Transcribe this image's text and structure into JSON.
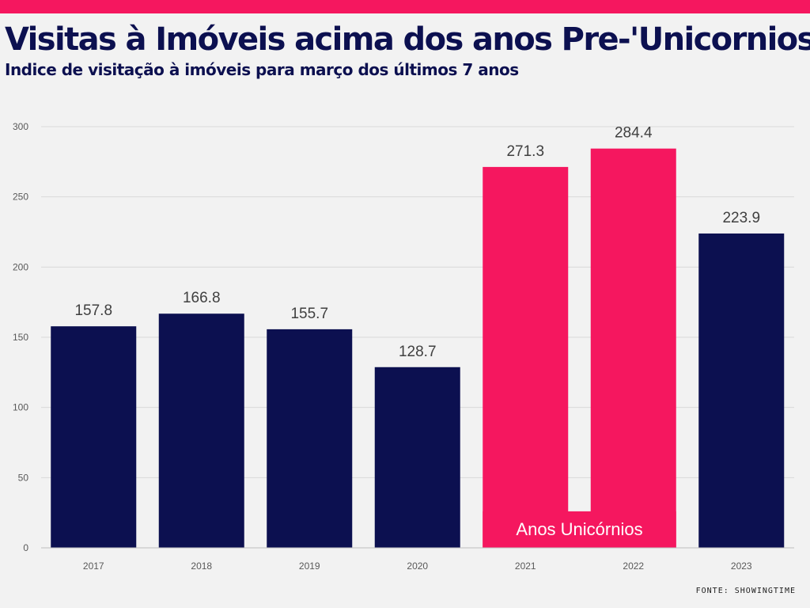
{
  "header": {
    "title": "Visitas à Imóveis acima dos anos Pre-'Unicornios'",
    "subtitle": "Indice de visitação à imóveis para março dos últimos 7 anos"
  },
  "source": "FONTE: SHOWINGTIME",
  "colors": {
    "accent": "#f5175f",
    "navy": "#0c1050",
    "grid": "#d9d9d9",
    "tick_text": "#595959",
    "value_text": "#404040"
  },
  "chart_data": {
    "type": "bar",
    "categories": [
      "2017",
      "2018",
      "2019",
      "2020",
      "2021",
      "2022",
      "2023"
    ],
    "values": [
      157.8,
      166.8,
      155.7,
      128.7,
      271.3,
      284.4,
      223.9
    ],
    "value_labels": [
      "157.8",
      "166.8",
      "155.7",
      "128.7",
      "271.3",
      "284.4",
      "223.9"
    ],
    "highlight": [
      "2021",
      "2022"
    ],
    "highlight_label": "Anos Unicórnios",
    "ylim": [
      0,
      300
    ],
    "yticks": [
      0,
      50,
      100,
      150,
      200,
      250,
      300
    ],
    "grid": true,
    "legend": "none"
  }
}
